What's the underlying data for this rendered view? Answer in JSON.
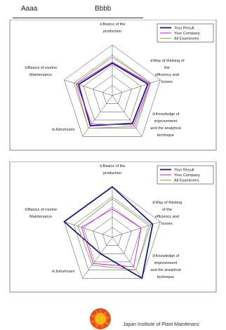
{
  "header": {
    "name_left": "Aaaa",
    "name_right": "Bbbb"
  },
  "footer": {
    "org": "Japan Institute of Plant Maintenanc",
    "logo_text": ""
  },
  "colors": {
    "your_result": "#1a1f7a",
    "your_company": "#e021d6",
    "all_examinees": "#9aa86a"
  },
  "chart_data": [
    {
      "type": "radar",
      "axes": [
        {
          "key": "axis1",
          "lines": [
            "①Basics of the",
            "production"
          ]
        },
        {
          "key": "axis2",
          "lines": [
            "②Way of thinking of",
            "the",
            "efficiency and",
            "losses"
          ]
        },
        {
          "key": "axis3",
          "lines": [
            "③Knowledge of",
            "improvement",
            "and the analytical",
            "technique"
          ]
        },
        {
          "key": "axis4",
          "lines": [
            "④Jishuhozen"
          ]
        },
        {
          "key": "axis5",
          "lines": [
            "⑤Basics of routine",
            "Maintenance"
          ]
        }
      ],
      "rings": 5,
      "range": [
        0,
        5
      ],
      "grid": true,
      "legend_position": "top-right",
      "series": [
        {
          "name": "Your Result",
          "values": [
            3.2,
            3.7,
            3.4,
            3.7,
            3.5
          ]
        },
        {
          "name": "Your Company",
          "values": [
            3.3,
            3.9,
            3.6,
            3.5,
            3.7
          ]
        },
        {
          "name": "All Examinees",
          "values": [
            3.8,
            4.0,
            3.8,
            4.0,
            3.8
          ]
        }
      ]
    },
    {
      "type": "radar",
      "axes": [
        {
          "key": "axis1",
          "lines": [
            "①Basics of the",
            "production"
          ]
        },
        {
          "key": "axis2",
          "lines": [
            "②Way of thinking",
            "of the",
            "efficiency and",
            "losses"
          ]
        },
        {
          "key": "axis3",
          "lines": [
            "③Knowledge of",
            "improvement",
            "and the analytical",
            "technique"
          ]
        },
        {
          "key": "axis4",
          "lines": [
            "④Jishuhozen"
          ]
        },
        {
          "key": "axis5",
          "lines": [
            "⑤Basics of routine",
            "Maintenance"
          ]
        }
      ],
      "rings": 5,
      "range": [
        0,
        5
      ],
      "grid": true,
      "legend_position": "top-right",
      "series": [
        {
          "name": "Your Result",
          "values": [
            5.0,
            4.2,
            5.0,
            2.0,
            5.0
          ]
        },
        {
          "name": "Your Company",
          "values": [
            2.8,
            3.0,
            3.6,
            3.2,
            3.2
          ]
        },
        {
          "name": "All Examinees",
          "values": [
            3.8,
            3.8,
            4.0,
            3.4,
            3.6
          ]
        }
      ]
    }
  ]
}
